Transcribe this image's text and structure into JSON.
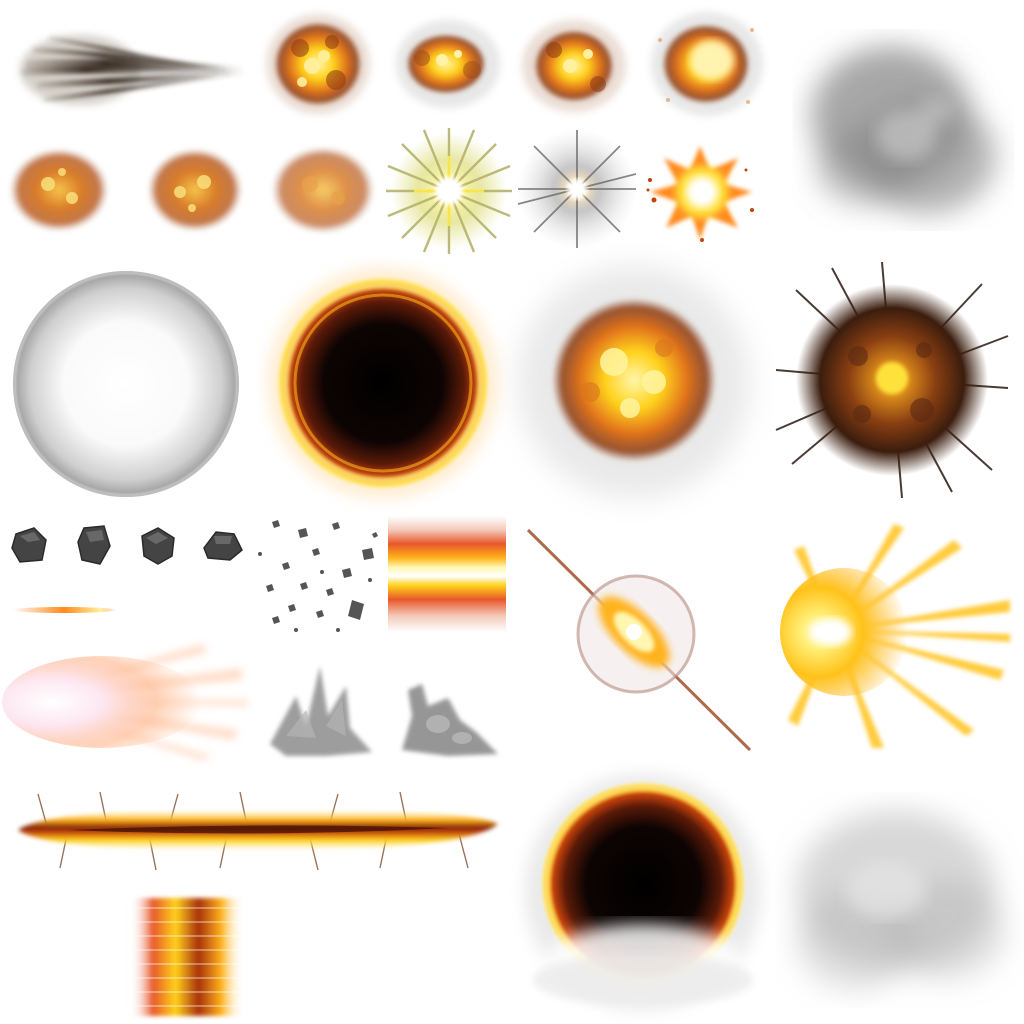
{
  "atlas": {
    "background": "#ffffff",
    "palette": {
      "fire_core": "#fff6b0",
      "fire_yellow": "#ffd21a",
      "fire_orange": "#ff8a1c",
      "fire_red": "#c2410c",
      "char_dark": "#3b1d0e",
      "void": "#000000",
      "smoke": "#8a8a8a",
      "rock": "#444444",
      "glow_white": "#ffffff",
      "muzzle_pink": "#ffd7d2"
    },
    "sprites": [
      {
        "id": "smoke-streak"
      },
      {
        "id": "explosion-puff-1"
      },
      {
        "id": "explosion-puff-2"
      },
      {
        "id": "explosion-puff-3"
      },
      {
        "id": "explosion-puff-4"
      },
      {
        "id": "smoke-cloud"
      },
      {
        "id": "ember-ball-1"
      },
      {
        "id": "ember-ball-2"
      },
      {
        "id": "ember-ball-3"
      },
      {
        "id": "flash-star-yellow"
      },
      {
        "id": "flash-star-white"
      },
      {
        "id": "spark-burst"
      },
      {
        "id": "shockwave-ring"
      },
      {
        "id": "black-hole-ring"
      },
      {
        "id": "fireball"
      },
      {
        "id": "crater-blast"
      },
      {
        "id": "rock-1"
      },
      {
        "id": "rock-2"
      },
      {
        "id": "rock-3"
      },
      {
        "id": "rock-4"
      },
      {
        "id": "debris-scatter"
      },
      {
        "id": "fire-gradient-strip"
      },
      {
        "id": "tracer-line"
      },
      {
        "id": "lens-flare"
      },
      {
        "id": "directional-burst"
      },
      {
        "id": "muzzle-flash"
      },
      {
        "id": "smoke-splash-1"
      },
      {
        "id": "smoke-splash-2"
      },
      {
        "id": "fire-beam"
      },
      {
        "id": "fire-column"
      },
      {
        "id": "portal-ring"
      },
      {
        "id": "fog-patch"
      }
    ]
  }
}
